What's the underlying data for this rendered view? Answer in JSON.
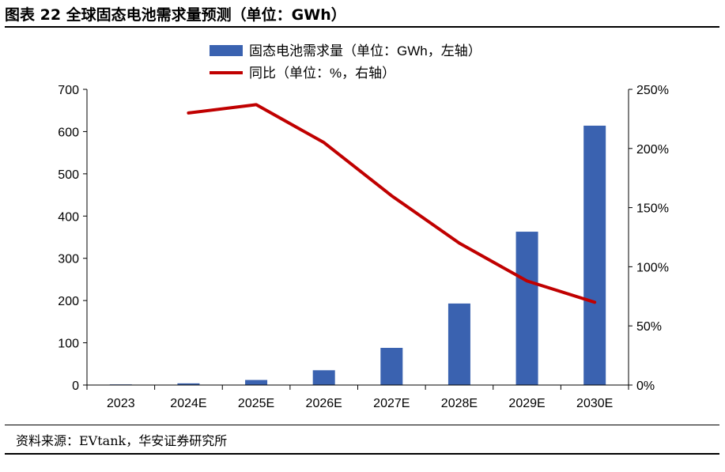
{
  "header": {
    "title": "图表 22 全球固态电池需求量预测（单位：GWh）"
  },
  "footer": {
    "source": "资料来源：EVtank，华安证券研究所"
  },
  "colors": {
    "bar": "#3A62B0",
    "line": "#C00000",
    "axis": "#000000"
  },
  "chart_data": {
    "type": "bar+line",
    "categories": [
      "2023",
      "2024E",
      "2025E",
      "2026E",
      "2027E",
      "2028E",
      "2029E",
      "2030E"
    ],
    "series": [
      {
        "name": "固态电池需求量（单位：GWh，左轴）",
        "type": "bar",
        "axis": "left",
        "values": [
          1.5,
          4,
          12,
          35,
          88,
          193,
          363,
          614
        ]
      },
      {
        "name": "同比（单位：%，右轴）",
        "type": "line",
        "axis": "right",
        "values": [
          null,
          230,
          237,
          205,
          160,
          120,
          88,
          70
        ]
      }
    ],
    "y_left": {
      "min": 0,
      "max": 700,
      "ticks": [
        0,
        100,
        200,
        300,
        400,
        500,
        600,
        700
      ]
    },
    "y_right": {
      "min": 0,
      "max": 250,
      "ticks": [
        "0%",
        "50%",
        "100%",
        "150%",
        "200%",
        "250%"
      ]
    },
    "legend": {
      "placement": "top-center"
    },
    "grid": false
  }
}
